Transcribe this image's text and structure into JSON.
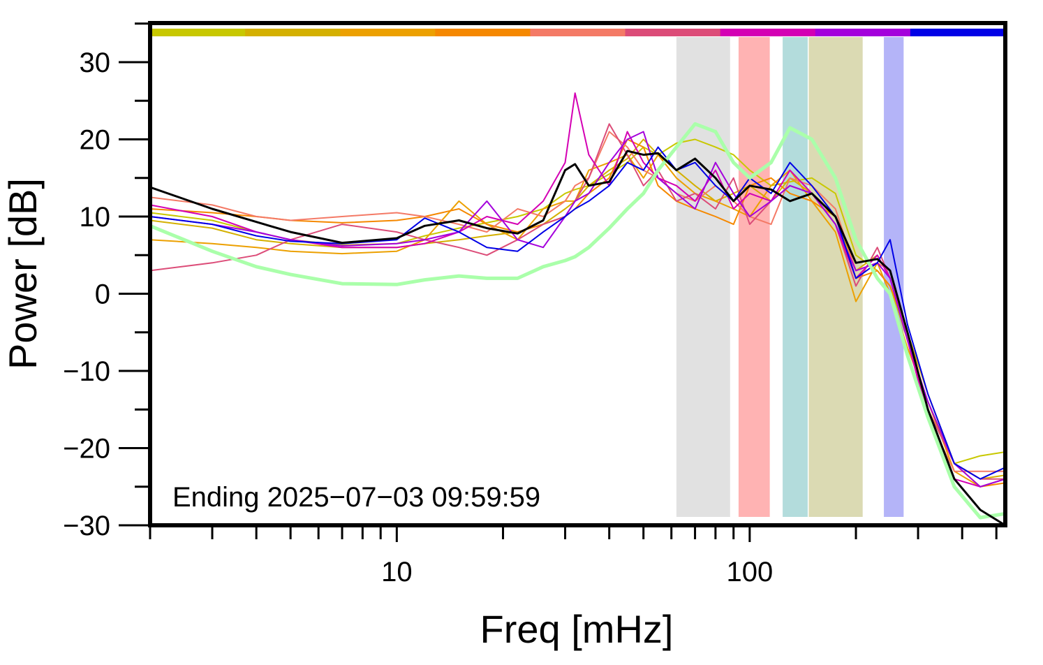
{
  "chart_data": {
    "type": "line",
    "xlabel": "Freq [mHz]",
    "ylabel": "Power [dB]",
    "annotation": "Ending 2025−07−03 09:59:59",
    "xscale": "log",
    "xlim": [
      2,
      530
    ],
    "ylim": [
      -30,
      35.07
    ],
    "xticks": [
      10,
      100
    ],
    "xminor_ticks": [
      2,
      3,
      4,
      5,
      6,
      7,
      8,
      9,
      20,
      30,
      40,
      50,
      60,
      70,
      80,
      90,
      200,
      300,
      400,
      500
    ],
    "yticks": [
      {
        "value": -30,
        "label": "−30"
      },
      {
        "value": -20,
        "label": "−20"
      },
      {
        "value": -10,
        "label": "−10"
      },
      0,
      10,
      20,
      30
    ],
    "yminor_ticks": [
      -25,
      -15,
      -5,
      5,
      15,
      25,
      35
    ],
    "bands": [
      {
        "range": [
          62,
          88
        ],
        "color": "#e1e1e1"
      },
      {
        "range": [
          93,
          114
        ],
        "color": "#ffb3b3"
      },
      {
        "range": [
          124,
          146
        ],
        "color": "#b3dcdc"
      },
      {
        "range": [
          147,
          209
        ],
        "color": "#dbdab3"
      },
      {
        "range": [
          240,
          273
        ],
        "color": "#b4b4f8"
      }
    ],
    "x": [
      2,
      3,
      4,
      5,
      7,
      10,
      12,
      15,
      18,
      22,
      26,
      30,
      32,
      35,
      40,
      45,
      50,
      55,
      62,
      70,
      80,
      90,
      100,
      115,
      130,
      150,
      175,
      200,
      230,
      250,
      280,
      320,
      380,
      450,
      530
    ],
    "series": [
      {
        "color": "#c8c800",
        "line_width": 2,
        "values": [
          10.5,
          9.5,
          8,
          7,
          6.3,
          6.5,
          7.5,
          8.5,
          9.2,
          10,
          11,
          13,
          13.5,
          14,
          15.5,
          17,
          19,
          18,
          19.5,
          20,
          19,
          18,
          16,
          14,
          14.5,
          15,
          13,
          5,
          3,
          1,
          -6,
          -14,
          -22,
          -21,
          -20.5
        ]
      },
      {
        "color": "#d4b000",
        "line_width": 2,
        "values": [
          9.5,
          8.5,
          7,
          6.5,
          6,
          6,
          6.5,
          7,
          7.5,
          8,
          9,
          11,
          12,
          14,
          16,
          17.5,
          20,
          18,
          16,
          14,
          12,
          13,
          14,
          12,
          15,
          13,
          10,
          3,
          5,
          2,
          -5,
          -13,
          -22,
          -24,
          -23.5
        ]
      },
      {
        "color": "#eca000",
        "line_width": 2,
        "values": [
          7,
          6.5,
          6,
          5.5,
          5.2,
          5.5,
          7,
          12,
          9,
          7,
          11,
          12,
          12,
          16,
          17,
          18,
          15,
          18,
          15,
          13,
          12,
          11,
          10,
          14,
          16,
          12,
          8,
          -1,
          4,
          0,
          -7,
          -14,
          -23,
          -25,
          -24
        ]
      },
      {
        "color": "#f58800",
        "line_width": 2,
        "values": [
          11,
          10.5,
          10,
          9.5,
          9.2,
          9.5,
          10,
          11,
          9,
          8,
          9,
          10,
          11,
          13,
          15,
          20,
          19,
          14,
          12,
          11,
          10,
          9,
          14,
          15,
          13,
          12,
          10,
          2,
          3,
          1,
          -5,
          -15,
          -22,
          -25,
          -24.5
        ]
      },
      {
        "color": "#f47a66",
        "line_width": 2,
        "values": [
          12.5,
          11.5,
          10,
          9.5,
          10,
          10.5,
          10,
          9,
          8,
          11,
          10,
          12,
          14,
          15,
          21,
          19,
          16,
          15,
          13,
          12,
          14,
          12,
          10,
          9,
          15,
          14,
          11,
          3,
          4,
          3,
          -6,
          -16,
          -23,
          -23,
          -23
        ]
      },
      {
        "color": "#dc4c78",
        "line_width": 2,
        "values": [
          3,
          4,
          5,
          7,
          9,
          8,
          7,
          6,
          5,
          7,
          9,
          10,
          12,
          15,
          22,
          18,
          14,
          16,
          12,
          13,
          11,
          15,
          9,
          12,
          14,
          13,
          9,
          1,
          6,
          2,
          -6,
          -15,
          -22,
          -24,
          -24
        ]
      },
      {
        "color": "#d400b4",
        "line_width": 2,
        "values": [
          11.5,
          10,
          8,
          7,
          6,
          6,
          6.5,
          8,
          10,
          9,
          12,
          17,
          26,
          18,
          14,
          21,
          17,
          15,
          14,
          12,
          16,
          11,
          13,
          12,
          16,
          13,
          9,
          2,
          5,
          2,
          -6,
          -16,
          -24,
          -25,
          -24
        ]
      },
      {
        "color": "#a400dc",
        "line_width": 2,
        "values": [
          10,
          9,
          8,
          7,
          6.2,
          6.5,
          7,
          8,
          12,
          7,
          6,
          10,
          12,
          13,
          17,
          20,
          21,
          15,
          13,
          11,
          17,
          13,
          10,
          12,
          14,
          13,
          9,
          3,
          4,
          2,
          -6,
          -14,
          -22,
          -25,
          -24
        ]
      },
      {
        "color": "#0000e6",
        "line_width": 2,
        "values": [
          10,
          9,
          7.5,
          6.8,
          6.5,
          7,
          9.8,
          8,
          6,
          5.5,
          8,
          10,
          11,
          12,
          14,
          17,
          16,
          19,
          16,
          17,
          14,
          12,
          15,
          13,
          17,
          14,
          10,
          2,
          4,
          7,
          -4,
          -13,
          -22,
          -24,
          -22.5
        ]
      },
      {
        "color": "#aaffaa",
        "line_width": 5,
        "values": [
          8.8,
          5.5,
          3.5,
          2.5,
          1.3,
          1.2,
          1.8,
          2.3,
          2,
          2,
          3.5,
          4.3,
          4.8,
          6,
          8.5,
          11,
          13,
          16,
          19,
          22,
          21,
          17,
          15,
          17,
          21.5,
          20,
          15,
          7,
          2,
          0,
          -8,
          -16,
          -25,
          -29,
          -28.5
        ]
      },
      {
        "color": "#000000",
        "line_width": 3,
        "values": [
          13.8,
          11,
          9.3,
          8,
          6.6,
          7.2,
          8.8,
          9.5,
          8.5,
          7.8,
          9.5,
          16,
          16.8,
          14,
          14.5,
          18.5,
          18,
          18.2,
          16,
          17.5,
          15,
          12,
          14,
          13.5,
          12,
          13,
          10,
          4,
          4.5,
          3,
          -5,
          -15,
          -24,
          -28,
          -30
        ]
      }
    ]
  }
}
